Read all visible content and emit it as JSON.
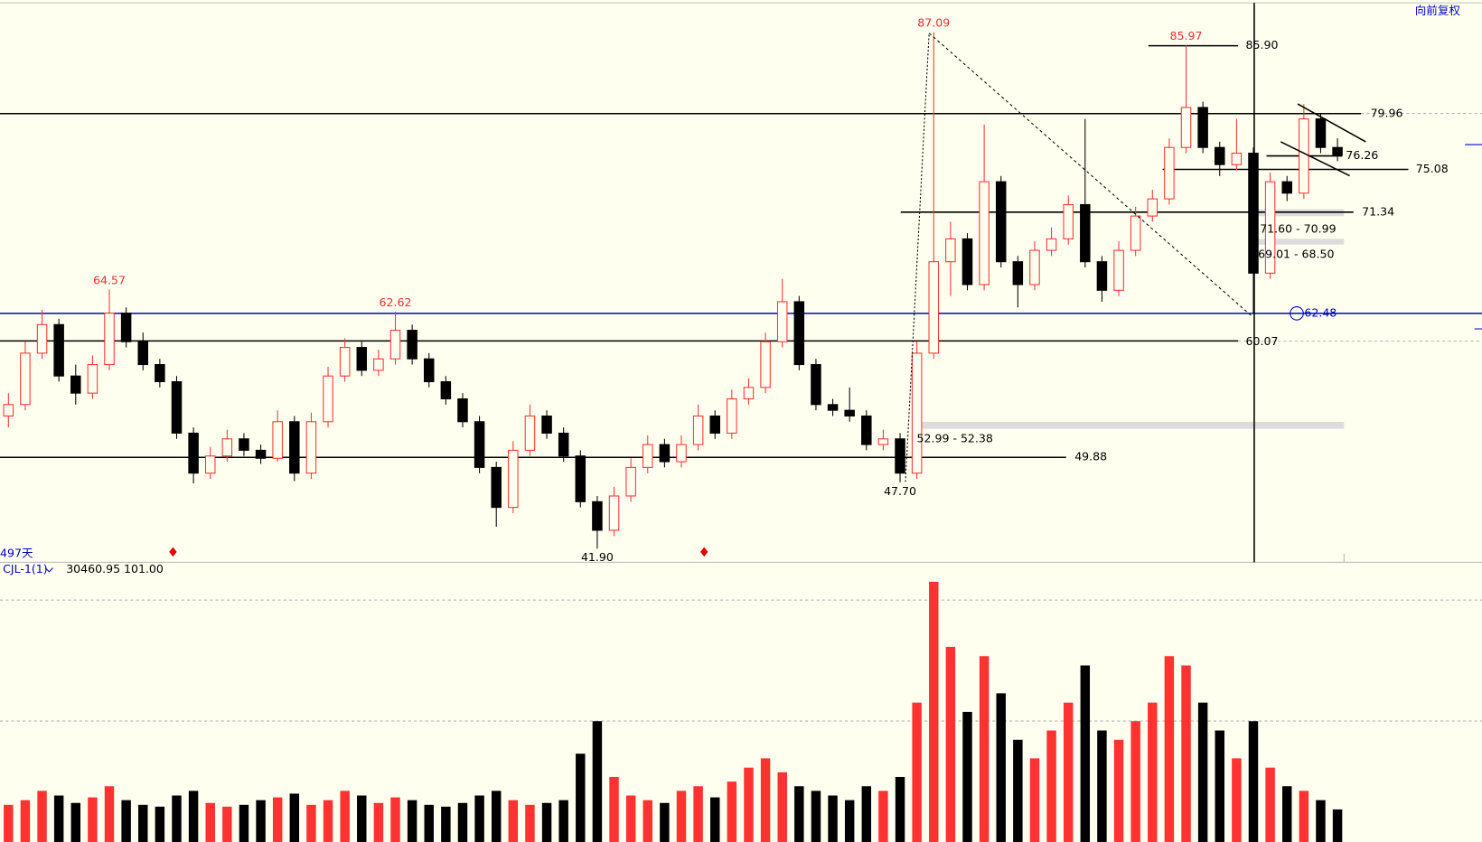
{
  "chart_data": {
    "type": "candlestick",
    "adjust_label": "向前复权",
    "period_label": "497天",
    "ylim": [
      40.7,
      89.9
    ],
    "up_color": "#ff3232",
    "down_color": "#000000",
    "candles": [
      [
        53.5,
        55.5,
        52.5,
        54.5
      ],
      [
        54.5,
        60,
        54,
        59
      ],
      [
        59,
        62.8,
        58.5,
        61.5
      ],
      [
        61.5,
        62,
        56.5,
        57
      ],
      [
        57,
        58,
        54.5,
        55.5
      ],
      [
        55.5,
        58.8,
        55,
        58
      ],
      [
        58,
        64.57,
        57.5,
        62.5
      ],
      [
        62.5,
        63,
        59.5,
        60
      ],
      [
        60,
        60.8,
        57.5,
        58
      ],
      [
        58,
        58.5,
        56,
        56.5
      ],
      [
        56.5,
        57,
        51.5,
        52
      ],
      [
        52,
        52.5,
        47.6,
        48.5
      ],
      [
        48.5,
        50.8,
        48,
        50
      ],
      [
        50,
        52.3,
        49.5,
        51.5
      ],
      [
        51.5,
        52,
        50,
        50.5
      ],
      [
        50.5,
        51,
        49.3,
        49.8
      ],
      [
        49.8,
        54,
        49.5,
        53
      ],
      [
        53,
        53.5,
        47.8,
        48.5
      ],
      [
        48.5,
        53.8,
        48,
        53
      ],
      [
        53,
        57.8,
        52.5,
        57
      ],
      [
        57,
        60.3,
        56.5,
        59.5
      ],
      [
        59.5,
        60,
        57,
        57.5
      ],
      [
        57.5,
        59.3,
        57,
        58.5
      ],
      [
        58.5,
        62.62,
        58,
        61
      ],
      [
        61,
        61.5,
        58,
        58.5
      ],
      [
        58.5,
        59,
        56,
        56.5
      ],
      [
        56.5,
        57,
        54.5,
        55
      ],
      [
        55,
        55.5,
        52.5,
        53
      ],
      [
        53,
        53.5,
        48.5,
        49
      ],
      [
        49,
        49.5,
        43.8,
        45.5
      ],
      [
        45.5,
        51.3,
        45,
        50.5
      ],
      [
        50.5,
        54.5,
        50,
        53.5
      ],
      [
        53.5,
        54,
        51.5,
        52
      ],
      [
        52,
        52.5,
        49.5,
        50
      ],
      [
        50,
        50.5,
        45.5,
        46
      ],
      [
        46,
        46.5,
        41.9,
        43.5
      ],
      [
        43.5,
        47.3,
        43,
        46.5
      ],
      [
        46.5,
        49.8,
        46,
        49
      ],
      [
        49,
        51.8,
        48.5,
        51
      ],
      [
        51,
        51.5,
        49,
        49.5
      ],
      [
        49.5,
        51.8,
        49,
        51
      ],
      [
        51,
        54.5,
        50.5,
        53.5
      ],
      [
        53.5,
        54,
        51.5,
        52
      ],
      [
        52,
        55.8,
        51.5,
        55
      ],
      [
        55,
        56.8,
        54.5,
        56
      ],
      [
        56,
        60.8,
        55.5,
        60
      ],
      [
        60,
        65.5,
        59.5,
        63.5
      ],
      [
        63.5,
        64,
        57.5,
        58
      ],
      [
        58,
        58.5,
        54,
        54.5
      ],
      [
        54.5,
        55,
        53.5,
        54
      ],
      [
        54,
        56,
        53,
        53.5
      ],
      [
        53.5,
        54,
        50.5,
        51
      ],
      [
        51,
        52.3,
        50.5,
        51.5
      ],
      [
        51.5,
        52,
        47.7,
        48.5
      ],
      [
        48.5,
        60,
        48,
        59
      ],
      [
        59,
        87.09,
        58.5,
        67
      ],
      [
        67,
        70.5,
        64,
        69
      ],
      [
        69,
        69.5,
        64.5,
        65
      ],
      [
        65,
        79,
        64.5,
        74
      ],
      [
        74,
        74.5,
        66.5,
        67
      ],
      [
        67,
        67.5,
        63,
        65
      ],
      [
        65,
        68.8,
        64.5,
        68
      ],
      [
        68,
        70,
        67.5,
        69
      ],
      [
        69,
        72.8,
        68.5,
        72
      ],
      [
        72,
        79.5,
        66.5,
        67
      ],
      [
        67,
        67.5,
        63.5,
        64.5
      ],
      [
        64.5,
        68.8,
        64,
        68
      ],
      [
        68,
        71.8,
        67.5,
        71
      ],
      [
        71,
        73.3,
        70.5,
        72.5
      ],
      [
        72.5,
        77.8,
        72,
        77
      ],
      [
        77,
        85.97,
        76.5,
        80.5
      ],
      [
        80.5,
        81,
        76.5,
        77
      ],
      [
        77,
        77.5,
        74.5,
        75.5
      ],
      [
        75.5,
        79.5,
        75,
        76.5
      ],
      [
        76.5,
        77,
        62.5,
        66
      ],
      [
        66,
        74.8,
        65.5,
        74
      ],
      [
        74,
        74.5,
        72.3,
        73
      ],
      [
        73,
        80.8,
        72.5,
        79.5
      ],
      [
        79.5,
        80,
        76.5,
        77
      ],
      [
        77,
        77.8,
        75.8,
        76.3
      ]
    ],
    "volume": {
      "name": "CJL-1(1)",
      "readouts": [
        "30460.95",
        "101.00"
      ],
      "ylim": [
        0,
        300
      ],
      "values": [
        40,
        45,
        55,
        50,
        42,
        48,
        60,
        45,
        40,
        38,
        50,
        55,
        42,
        38,
        40,
        45,
        48,
        52,
        40,
        45,
        55,
        50,
        42,
        48,
        45,
        40,
        38,
        42,
        50,
        55,
        45,
        40,
        42,
        45,
        95,
        130,
        70,
        50,
        45,
        42,
        55,
        60,
        48,
        65,
        80,
        90,
        75,
        60,
        55,
        50,
        45,
        60,
        55,
        70,
        150,
        280,
        210,
        140,
        200,
        160,
        110,
        90,
        120,
        150,
        190,
        120,
        110,
        130,
        150,
        200,
        190,
        150,
        120,
        90,
        130,
        80,
        60,
        55,
        45,
        35
      ]
    },
    "levels": [
      {
        "value": 85.9,
        "label": "85.90",
        "color": "#000000"
      },
      {
        "value": 79.96,
        "label": "79.96",
        "color": "#000000"
      },
      {
        "value": 76.26,
        "label": "76.26",
        "color": "#000000"
      },
      {
        "value": 75.08,
        "label": "75.08",
        "color": "#000000"
      },
      {
        "value": 71.34,
        "label": "71.34",
        "color": "#000000"
      },
      {
        "value": 62.48,
        "label": "62.48",
        "color": "#0000c8"
      },
      {
        "value": 60.07,
        "label": "60.07",
        "color": "#000000"
      },
      {
        "value": 49.88,
        "label": "49.88",
        "color": "#000000"
      }
    ],
    "peaks": [
      {
        "value": 87.09,
        "label": "87.09"
      },
      {
        "value": 85.97,
        "label": "85.97"
      },
      {
        "value": 64.57,
        "label": "64.57"
      },
      {
        "value": 62.62,
        "label": "62.62"
      },
      {
        "value": 47.7,
        "label": "47.70"
      },
      {
        "value": 41.9,
        "label": "41.90"
      }
    ],
    "zones": [
      {
        "high": 71.6,
        "low": 70.99,
        "label": "71.60 - 70.99"
      },
      {
        "high": 69.01,
        "low": 68.5,
        "label": "69.01 - 68.50"
      },
      {
        "high": 52.99,
        "low": 52.38,
        "label": "52.99 - 52.38"
      }
    ]
  }
}
